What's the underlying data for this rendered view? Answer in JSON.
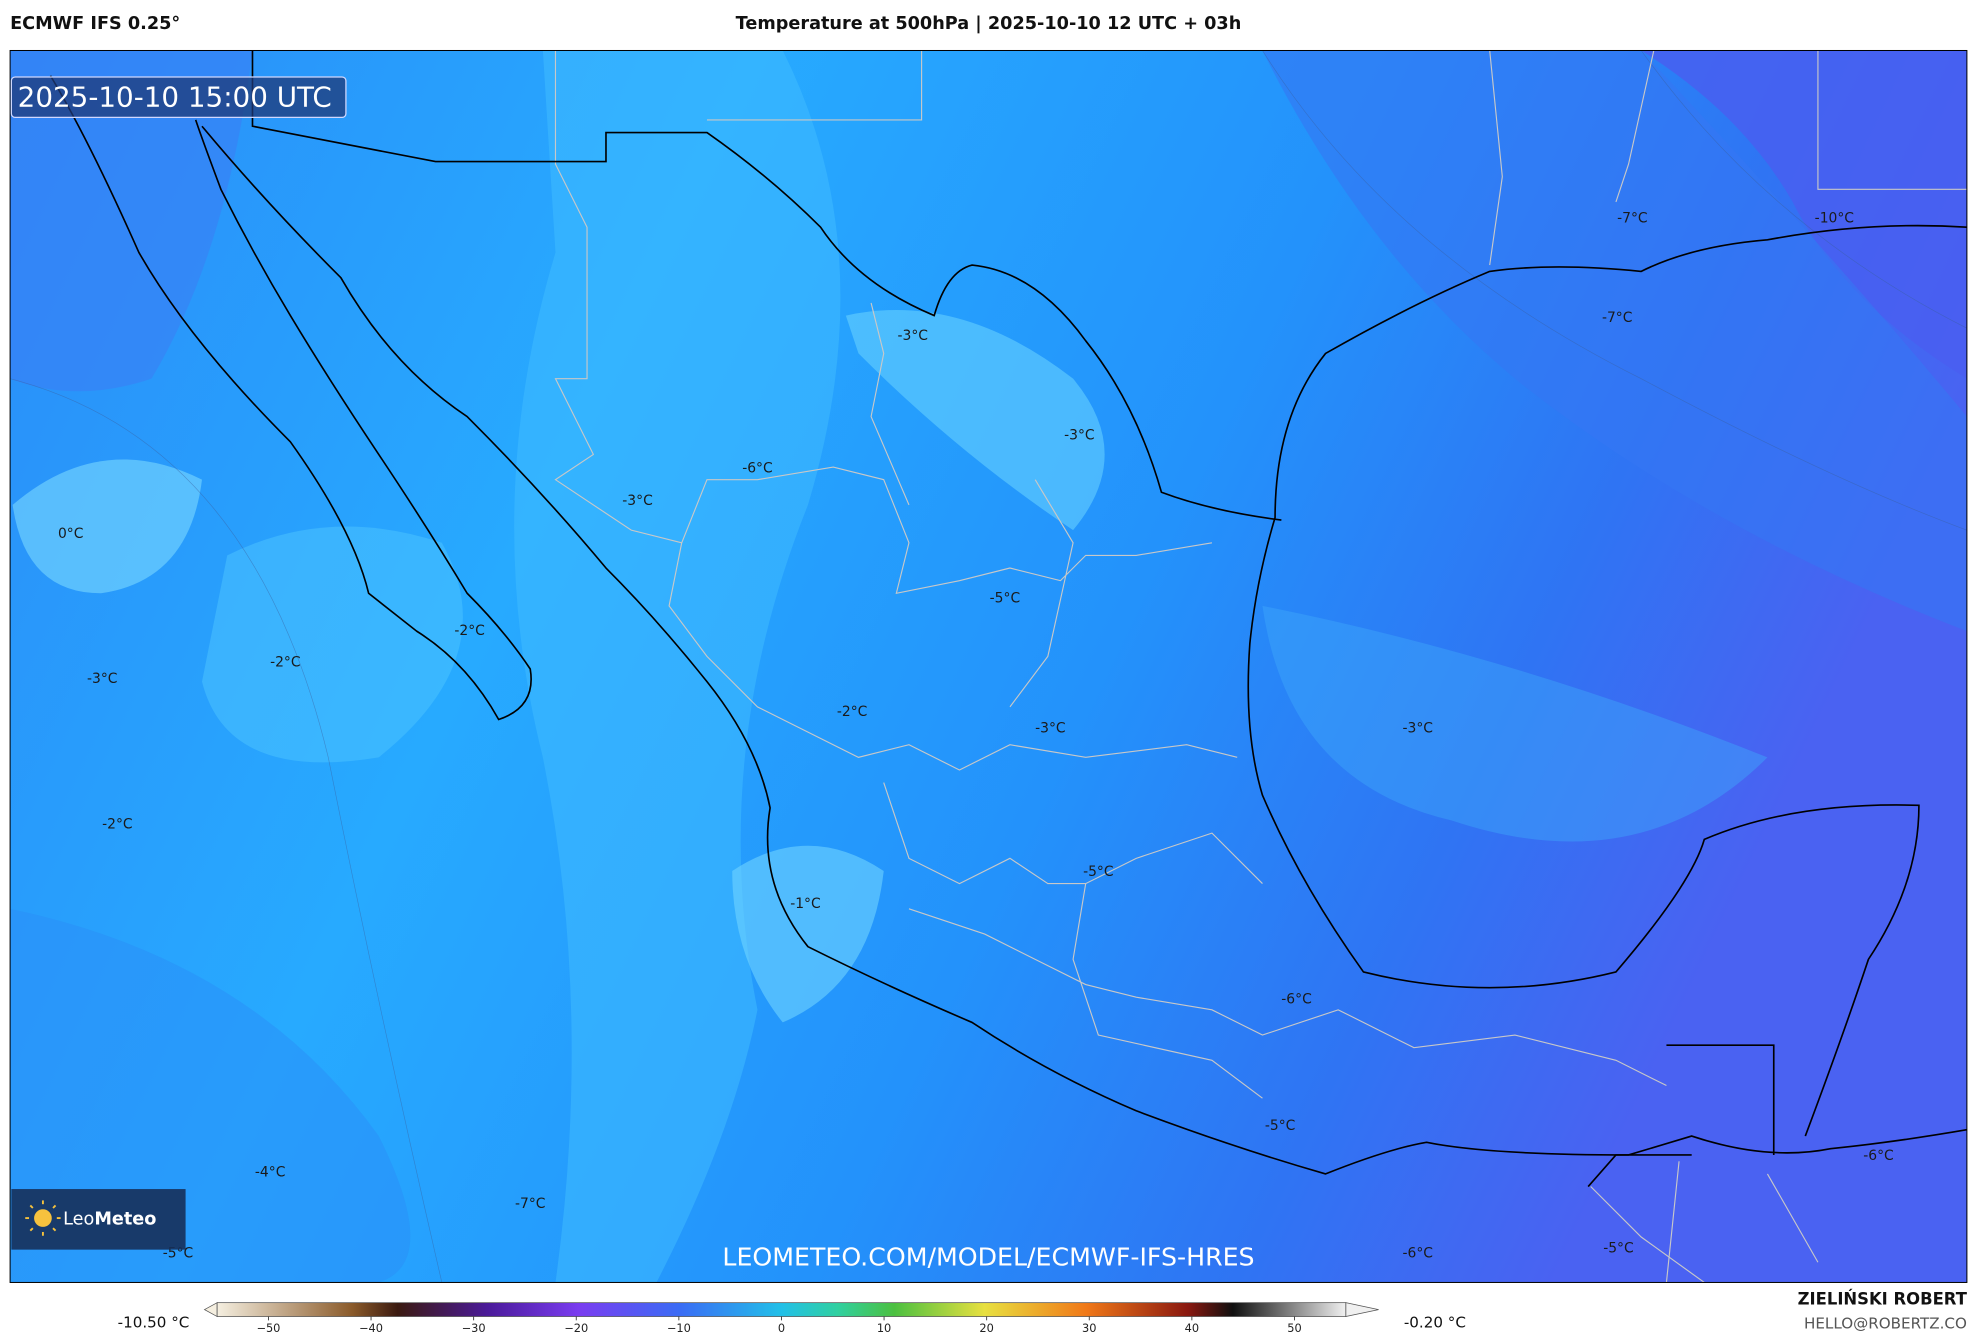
{
  "header": {
    "model": "ECMWF IFS 0.25°",
    "title": "Temperature at 500hPa | 2025-10-10 12 UTC + 03h"
  },
  "map": {
    "valid_time": "2025-10-10 15:00 UTC",
    "watermark": "LEOMETEO.COM/MODEL/ECMWF-IFS-HRES",
    "logo": {
      "prefix": "Leo",
      "name": "Meteo"
    },
    "contour_labels": [
      "-3°C",
      "-3°C",
      "-6°C",
      "-3°C",
      "0°C",
      "-5°C",
      "-2°C",
      "-2°C",
      "-3°C",
      "-2°C",
      "-3°C",
      "-3°C",
      "-2°C",
      "-5°C",
      "-1°C",
      "-6°C",
      "-5°C",
      "-4°C",
      "-6°C",
      "-7°C",
      "-5°C",
      "-6°C",
      "-5°C",
      "-7°C",
      "-10°C",
      "-7°C"
    ]
  },
  "colorbar": {
    "min_label": "-10.50 °C",
    "max_label": "-0.20 °C",
    "range": [
      -55,
      55
    ],
    "ticks": [
      {
        "value": -50,
        "label": "−50"
      },
      {
        "value": -40,
        "label": "−40"
      },
      {
        "value": -30,
        "label": "−30"
      },
      {
        "value": -20,
        "label": "−20"
      },
      {
        "value": -10,
        "label": "−10"
      },
      0,
      10,
      20,
      30,
      40,
      50
    ]
  },
  "footer": {
    "author": "ZIELIŃSKI ROBERT",
    "email": "HELLO@ROBERTZ.CO"
  }
}
